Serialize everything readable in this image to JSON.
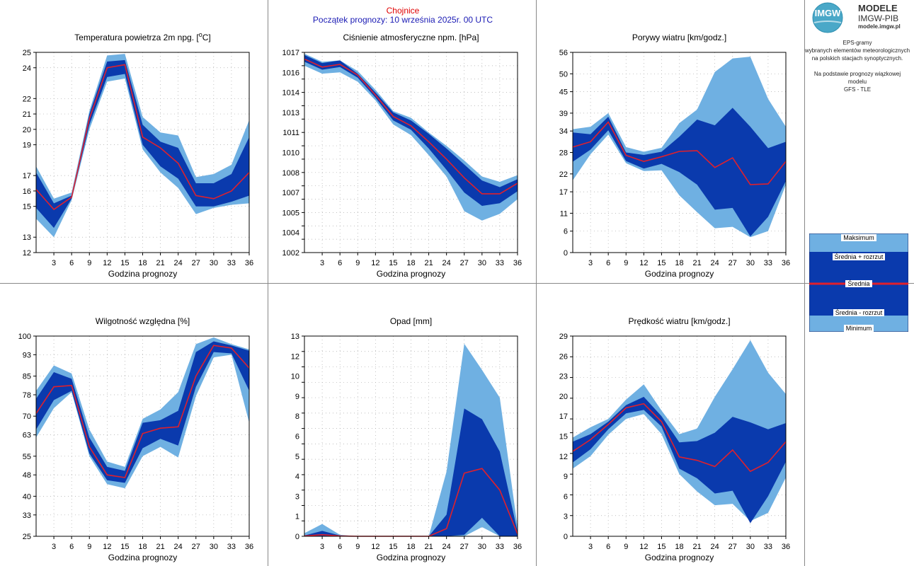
{
  "header": {
    "station": "Chojnice",
    "forecast_start": "Początek prognozy: 10 września 2025r. 00 UTC"
  },
  "logo": {
    "mark": "IMGW",
    "line1": "MODELE",
    "line2": "IMGW-PIB",
    "line3": "modele.imgw.pl"
  },
  "info": {
    "line1": "EPS-gramy",
    "line2": "wybranych elementów meteorologicznych",
    "line3": "na polskich stacjach  synoptycznych.",
    "line4": "Na podstawie prognozy wiązkowej modelu",
    "line5": "GFS - TLE"
  },
  "legend": {
    "max": "Maksimum",
    "mean_plus": "Średnia + rozrzut",
    "mean": "Średnia",
    "mean_minus": "Średnia - rozrzut",
    "min": "Minimum"
  },
  "colors": {
    "minmax_band": "#6fb0e2",
    "spread_band": "#0a3aad",
    "mean_line": "#e0202c",
    "grid": "#aaaaaa"
  },
  "chart_data": [
    {
      "type": "area",
      "title": "Temperatura powietrza 2m npg. [",
      "title_sup": "o",
      "title_end": "C]",
      "xlabel": "Godzina prognozy",
      "ylabel": "",
      "x": [
        0,
        3,
        6,
        9,
        12,
        15,
        18,
        21,
        24,
        27,
        30,
        33,
        36
      ],
      "ylim": [
        12,
        25
      ],
      "yticks": [
        12,
        13,
        15,
        16,
        17,
        19,
        20,
        21,
        22,
        24,
        25
      ],
      "ytick_labels": [
        "12",
        "13",
        "15",
        "16",
        "17",
        "19",
        "20",
        "21",
        "22",
        "24",
        "25"
      ],
      "xticks": [
        "3",
        "6",
        "9",
        "12",
        "15",
        "18",
        "21",
        "24",
        "27",
        "30",
        "33",
        "36"
      ],
      "max": [
        17.6,
        15.5,
        15.9,
        21.2,
        24.8,
        24.9,
        20.8,
        19.8,
        19.6,
        16.9,
        17.1,
        17.7,
        20.6
      ],
      "mean_plus": [
        17.2,
        15.2,
        15.7,
        21.0,
        24.4,
        24.5,
        20.3,
        19.2,
        18.8,
        16.5,
        16.5,
        17.1,
        19.5
      ],
      "mean": [
        16.1,
        14.8,
        15.6,
        20.7,
        24.0,
        24.2,
        19.5,
        18.8,
        17.8,
        15.7,
        15.5,
        16.0,
        17.2
      ],
      "mean_minus": [
        14.9,
        13.6,
        15.5,
        20.3,
        23.4,
        23.6,
        19.0,
        17.6,
        16.8,
        15.0,
        15.0,
        15.3,
        15.7
      ],
      "min": [
        14.2,
        13.0,
        15.4,
        20.0,
        23.1,
        23.3,
        18.7,
        17.2,
        16.2,
        14.5,
        14.9,
        15.1,
        15.2
      ]
    },
    {
      "type": "area",
      "title": "Ciśnienie atmosferyczne npm. [hPa]",
      "xlabel": "Godzina prognozy",
      "ylabel": "",
      "x": [
        0,
        3,
        6,
        9,
        12,
        15,
        18,
        21,
        24,
        27,
        30,
        33,
        36
      ],
      "ylim": [
        1002,
        1017
      ],
      "yticks": [
        1002,
        1003,
        1004,
        1005,
        1006,
        1007,
        1008,
        1009,
        1010,
        1011,
        1012,
        1013,
        1014,
        1015,
        1016,
        1017
      ],
      "ytick_labels": [
        "1002",
        "1004",
        "1005",
        "1007",
        "1008",
        "1010",
        "1011",
        "1013",
        "1014",
        "1016",
        "1017"
      ],
      "ytick_label_values": [
        1002,
        1003.5,
        1005,
        1006.5,
        1008,
        1009.5,
        1011,
        1012.5,
        1014,
        1015.5,
        1017
      ],
      "xticks": [
        "3",
        "6",
        "9",
        "12",
        "15",
        "18",
        "21",
        "24",
        "27",
        "30",
        "33",
        "36"
      ],
      "max": [
        1016.9,
        1016.3,
        1016.4,
        1015.6,
        1014.2,
        1012.6,
        1012.1,
        1011.0,
        1010.0,
        1008.9,
        1007.7,
        1007.3,
        1007.8
      ],
      "mean_plus": [
        1016.8,
        1016.2,
        1016.4,
        1015.4,
        1014.0,
        1012.5,
        1011.9,
        1010.9,
        1009.8,
        1008.6,
        1007.4,
        1006.9,
        1007.5
      ],
      "mean": [
        1016.5,
        1015.9,
        1016.1,
        1015.3,
        1013.8,
        1012.2,
        1011.5,
        1010.3,
        1009.0,
        1007.6,
        1006.4,
        1006.4,
        1007.2
      ],
      "mean_minus": [
        1016.3,
        1015.7,
        1015.9,
        1015.1,
        1013.6,
        1011.9,
        1011.2,
        1009.8,
        1008.2,
        1006.5,
        1005.5,
        1005.7,
        1006.6
      ],
      "min": [
        1016.0,
        1015.4,
        1015.5,
        1014.8,
        1013.4,
        1011.6,
        1010.8,
        1009.3,
        1007.7,
        1005.1,
        1004.4,
        1004.9,
        1006.0
      ]
    },
    {
      "type": "area",
      "title": "Porywy wiatru [km/godz.]",
      "xlabel": "Godzina prognozy",
      "ylabel": "",
      "x": [
        0,
        3,
        6,
        9,
        12,
        15,
        18,
        21,
        24,
        27,
        30,
        33,
        36
      ],
      "ylim": [
        0,
        56
      ],
      "yticks": [
        0,
        6,
        11,
        17,
        22,
        28,
        34,
        39,
        45,
        50,
        56
      ],
      "ytick_labels": [
        "0",
        "6",
        "11",
        "17",
        "22",
        "28",
        "34",
        "39",
        "45",
        "50",
        "56"
      ],
      "xticks": [
        "3",
        "6",
        "9",
        "12",
        "15",
        "18",
        "21",
        "24",
        "27",
        "30",
        "33",
        "36"
      ],
      "max": [
        34.5,
        35.2,
        39.0,
        29.5,
        28.2,
        29.3,
        36.2,
        40.0,
        50.5,
        54.3,
        54.8,
        43.0,
        35.2
      ],
      "mean_plus": [
        33.6,
        33.1,
        38.0,
        28.0,
        27.3,
        28.2,
        32.4,
        37.2,
        35.6,
        40.5,
        35.2,
        29.2,
        31.0
      ],
      "mean": [
        29.5,
        31.0,
        36.5,
        27.2,
        25.5,
        26.8,
        28.3,
        28.5,
        23.8,
        26.5,
        19.0,
        19.2,
        25.5
      ],
      "mean_minus": [
        25.4,
        28.8,
        34.2,
        25.6,
        23.5,
        24.8,
        22.5,
        19.0,
        12.0,
        12.5,
        4.5,
        10.0,
        20.0
      ],
      "min": [
        20.2,
        27.5,
        33.0,
        25.0,
        22.8,
        23.0,
        16.0,
        11.3,
        6.8,
        7.2,
        4.3,
        6.0,
        19.0
      ]
    },
    {
      "type": "area",
      "title": "Wilgotność względna [%]",
      "xlabel": "Godzina prognozy",
      "ylabel": "",
      "x": [
        0,
        3,
        6,
        9,
        12,
        15,
        18,
        21,
        24,
        27,
        30,
        33,
        36
      ],
      "ylim": [
        25,
        100
      ],
      "yticks": [
        25,
        33,
        40,
        48,
        55,
        63,
        70,
        78,
        85,
        93,
        100
      ],
      "ytick_labels": [
        "25",
        "33",
        "40",
        "48",
        "55",
        "63",
        "70",
        "78",
        "85",
        "93",
        "100"
      ],
      "xticks": [
        "3",
        "6",
        "9",
        "12",
        "15",
        "18",
        "21",
        "24",
        "27",
        "30",
        "33",
        "36"
      ],
      "max": [
        79.5,
        89.0,
        86.0,
        65.0,
        53.0,
        51.0,
        69.0,
        72.5,
        79.0,
        97.0,
        99.5,
        97.0,
        95.0
      ],
      "mean_plus": [
        76.5,
        86.5,
        84.0,
        62.0,
        51.0,
        49.5,
        67.5,
        68.5,
        72.0,
        94.0,
        98.0,
        96.5,
        94.5
      ],
      "mean": [
        71.0,
        81.0,
        81.5,
        58.5,
        48.0,
        47.0,
        63.5,
        65.5,
        66.0,
        85.0,
        96.5,
        95.5,
        88.0
      ],
      "mean_minus": [
        65.0,
        76.0,
        79.5,
        56.0,
        46.0,
        45.0,
        58.0,
        61.5,
        59.0,
        81.0,
        94.0,
        93.5,
        79.5
      ],
      "min": [
        62.0,
        73.0,
        79.0,
        55.0,
        44.5,
        43.0,
        55.0,
        58.5,
        54.5,
        77.5,
        92.0,
        93.0,
        67.5
      ]
    },
    {
      "type": "area",
      "title": "Opad [mm]",
      "xlabel": "Godzina prognozy",
      "ylabel": "",
      "x": [
        0,
        3,
        6,
        9,
        12,
        15,
        18,
        21,
        24,
        27,
        30,
        33,
        36
      ],
      "ylim": [
        0,
        13
      ],
      "yticks": [
        0,
        1,
        2,
        3,
        4,
        5,
        6,
        7,
        8,
        9,
        10,
        11,
        12,
        13
      ],
      "ytick_labels": [
        "0",
        "1",
        "3",
        "4",
        "5",
        "6",
        "8",
        "9",
        "10",
        "12",
        "13"
      ],
      "ytick_label_values": [
        0,
        1.3,
        2.6,
        3.9,
        5.2,
        6.5,
        7.8,
        9.1,
        10.4,
        11.7,
        13
      ],
      "xticks": [
        "3",
        "6",
        "9",
        "12",
        "15",
        "18",
        "21",
        "24",
        "27",
        "30",
        "33",
        "36"
      ],
      "max": [
        0.2,
        0.8,
        0.1,
        0.0,
        0.0,
        0.0,
        0.0,
        0.0,
        4.2,
        12.5,
        10.8,
        9.0,
        0.6
      ],
      "mean_plus": [
        0.05,
        0.35,
        0.05,
        0.0,
        0.0,
        0.0,
        0.0,
        0.0,
        1.4,
        8.3,
        7.6,
        5.5,
        0.3
      ],
      "mean": [
        0.02,
        0.1,
        0.02,
        0.0,
        0.0,
        0.0,
        0.0,
        0.0,
        0.5,
        4.1,
        4.4,
        3.0,
        0.15
      ],
      "mean_minus": [
        0.0,
        0.0,
        0.0,
        0.0,
        0.0,
        0.0,
        0.0,
        0.0,
        0.0,
        0.1,
        1.2,
        0.0,
        0.0
      ],
      "min": [
        0.0,
        0.0,
        0.0,
        0.0,
        0.0,
        0.0,
        0.0,
        0.0,
        0.0,
        0.0,
        0.6,
        0.0,
        0.0
      ]
    },
    {
      "type": "area",
      "title": "Prędkość wiatru [km/godz.]",
      "xlabel": "Godzina prognozy",
      "ylabel": "",
      "x": [
        0,
        3,
        6,
        9,
        12,
        15,
        18,
        21,
        24,
        27,
        30,
        33,
        36
      ],
      "ylim": [
        0,
        29
      ],
      "yticks": [
        0,
        3,
        6,
        9,
        12,
        15,
        17,
        20,
        23,
        26,
        29
      ],
      "ytick_labels": [
        "0",
        "3",
        "6",
        "9",
        "12",
        "15",
        "17",
        "20",
        "23",
        "26",
        "29"
      ],
      "ytick_label_values": [
        0,
        2.9,
        5.8,
        8.7,
        11.6,
        14.5,
        17.4,
        20.3,
        23.2,
        26.1,
        29
      ],
      "xticks": [
        "3",
        "6",
        "9",
        "12",
        "15",
        "18",
        "21",
        "24",
        "27",
        "30",
        "33",
        "36"
      ],
      "max": [
        14.3,
        15.8,
        17.0,
        19.8,
        22.0,
        18.2,
        14.8,
        15.6,
        20.2,
        24.2,
        28.4,
        23.7,
        20.6
      ],
      "mean_plus": [
        13.7,
        14.8,
        16.6,
        19.0,
        20.2,
        17.4,
        13.6,
        13.8,
        15.0,
        17.3,
        16.5,
        15.5,
        16.4
      ],
      "mean": [
        12.3,
        14.0,
        16.2,
        18.6,
        19.2,
        16.6,
        11.5,
        11.0,
        10.1,
        12.5,
        9.4,
        10.7,
        13.7
      ],
      "mean_minus": [
        10.7,
        12.6,
        15.5,
        17.8,
        18.3,
        15.9,
        9.8,
        8.4,
        6.2,
        6.6,
        1.9,
        5.8,
        10.8
      ],
      "min": [
        9.8,
        11.6,
        14.7,
        17.0,
        17.7,
        14.8,
        9.0,
        6.5,
        4.5,
        4.7,
        2.2,
        3.4,
        8.5
      ]
    }
  ]
}
